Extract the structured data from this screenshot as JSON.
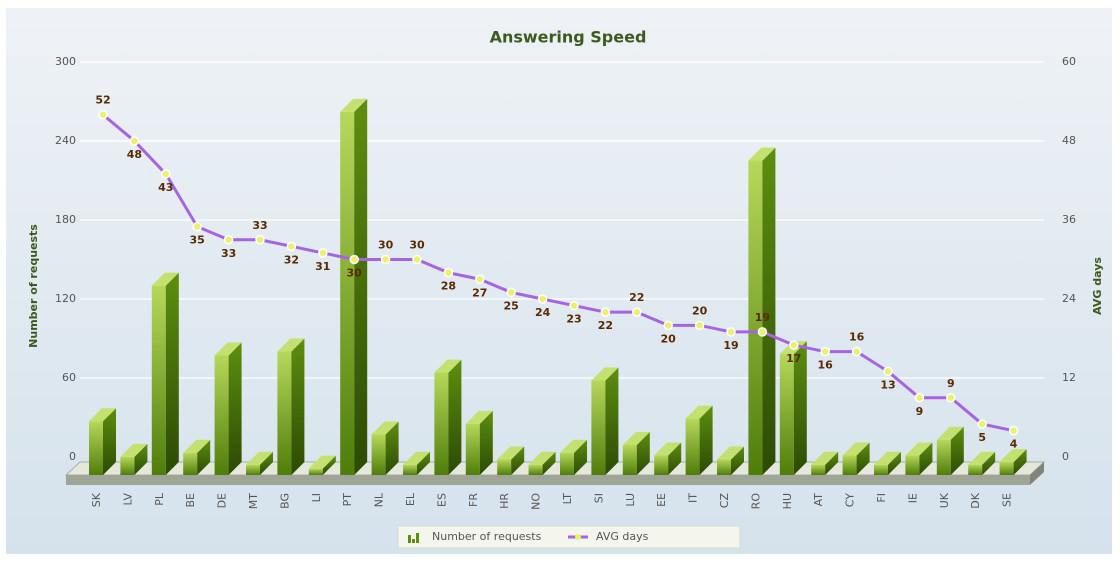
{
  "chart_data": {
    "type": "bar-line",
    "title": "Answering Speed",
    "categories": [
      "SK",
      "LV",
      "PL",
      "BE",
      "DE",
      "MT",
      "BG",
      "LI",
      "PT",
      "NL",
      "EL",
      "ES",
      "FR",
      "HR",
      "NO",
      "LT",
      "SI",
      "LU",
      "EE",
      "IT",
      "CZ",
      "RO",
      "HU",
      "AT",
      "CY",
      "FI",
      "IE",
      "UK",
      "DK",
      "SE"
    ],
    "series": [
      {
        "name": "Number of requests",
        "type": "bar",
        "color": "#5d8f0f",
        "values": [
          37,
          10,
          140,
          13,
          87,
          4,
          90,
          1,
          272,
          27,
          4,
          74,
          35,
          8,
          4,
          13,
          68,
          19,
          11,
          39,
          8,
          235,
          88,
          4,
          11,
          4,
          11,
          23,
          4,
          6
        ]
      },
      {
        "name": "AVG days",
        "type": "line",
        "axis": "y2",
        "color": "#a764e0",
        "values": [
          52,
          48,
          43,
          35,
          33,
          33,
          32,
          31,
          30,
          30,
          30,
          28,
          27,
          25,
          24,
          23,
          22,
          22,
          20,
          20,
          19,
          19,
          17,
          16,
          16,
          13,
          9,
          9,
          5,
          4
        ]
      }
    ],
    "ylabel": "Number of requests",
    "y2label": "AVG days",
    "ylim": [
      0,
      300
    ],
    "yticks": [
      0,
      60,
      120,
      180,
      240,
      300
    ],
    "y2lim": [
      0,
      60
    ],
    "y2ticks": [
      0,
      12,
      24,
      36,
      48,
      60
    ],
    "grid": true,
    "legend": "bottom"
  }
}
